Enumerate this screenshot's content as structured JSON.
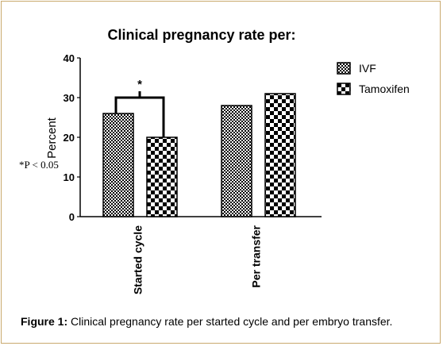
{
  "chart_data": {
    "type": "bar",
    "title": "Clinical pregnancy rate per:",
    "ylabel": "Percent",
    "xlabel": "",
    "ylim": [
      0,
      40
    ],
    "yticks": [
      0,
      10,
      20,
      30,
      40
    ],
    "categories": [
      "Started cycle",
      "Per transfer"
    ],
    "series": [
      {
        "name": "IVF",
        "values": [
          26,
          28
        ],
        "pattern": "fine-checker"
      },
      {
        "name": "Tamoxifen",
        "values": [
          20,
          31
        ],
        "pattern": "coarse-checker"
      }
    ],
    "legend_position": "right",
    "grid": false,
    "annotation": {
      "text": "*",
      "note": "*P < 0.05"
    }
  },
  "caption": {
    "label": "Figure 1:",
    "text": " Clinical pregnancy rate per started cycle and per embryo transfer."
  },
  "colors": {
    "border": "#c9a96e",
    "ink": "#000000"
  }
}
